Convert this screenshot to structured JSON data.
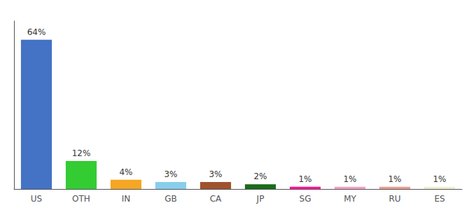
{
  "chart_data": {
    "type": "bar",
    "categories": [
      "US",
      "OTH",
      "IN",
      "GB",
      "CA",
      "JP",
      "SG",
      "MY",
      "RU",
      "ES"
    ],
    "values": [
      64,
      12,
      4,
      3,
      3,
      2,
      1,
      1,
      1,
      1
    ],
    "value_labels": [
      "64%",
      "12%",
      "4%",
      "3%",
      "3%",
      "2%",
      "1%",
      "1%",
      "1%",
      "1%"
    ],
    "colors": [
      "#4472C4",
      "#33CC33",
      "#F5A623",
      "#87CEEB",
      "#A0522D",
      "#1A6B1A",
      "#FF1493",
      "#F4A0C0",
      "#E8A090",
      "#F0EDD0"
    ],
    "ylim": [
      0,
      72
    ],
    "data_labels": true,
    "tick_labels": "x",
    "grid": false
  }
}
